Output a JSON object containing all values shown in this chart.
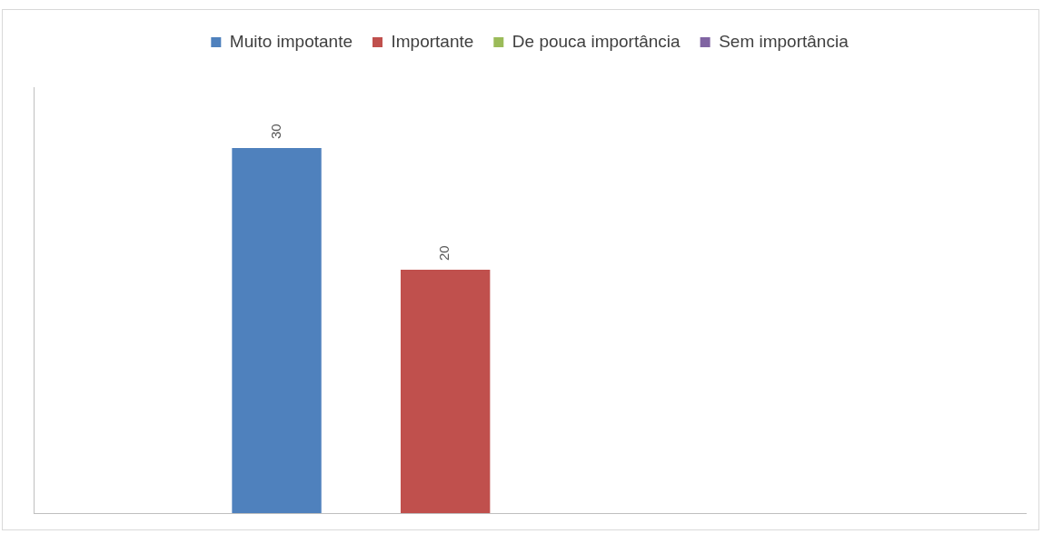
{
  "chart_data": {
    "type": "bar",
    "categories": [
      null
    ],
    "series": [
      {
        "name": "Muito impotante",
        "color": "#4f81bd",
        "values": [
          30
        ]
      },
      {
        "name": "Importante",
        "color": "#c0504d",
        "values": [
          20
        ]
      },
      {
        "name": "De pouca importância",
        "color": "#9bbb59",
        "values": [
          null
        ]
      },
      {
        "name": "Sem importância",
        "color": "#8064a2",
        "values": [
          null
        ]
      }
    ],
    "data_labels": true,
    "legend": "top",
    "grid": false,
    "tick_labels": false
  }
}
